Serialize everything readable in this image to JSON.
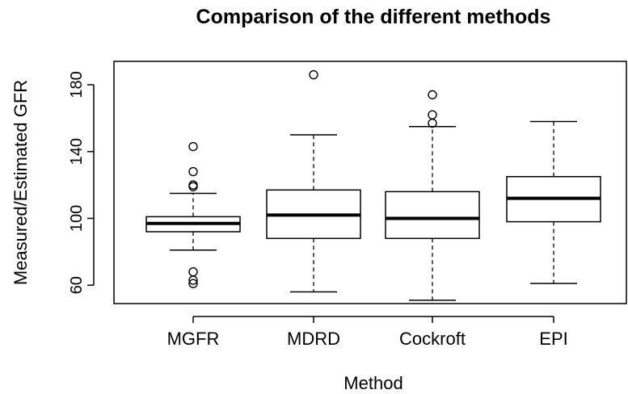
{
  "chart_data": {
    "type": "boxplot",
    "title": "Comparison of the different methods",
    "xlabel": "Method",
    "ylabel": "Measured/Estimated GFR",
    "categories": [
      "MGFR",
      "MDRD",
      "Cockroft",
      "EPI"
    ],
    "ylim": [
      49,
      194
    ],
    "yticks": [
      60,
      100,
      140,
      180
    ],
    "grid": false,
    "boxes": [
      {
        "name": "MGFR",
        "whisker_low": 81,
        "q1": 92,
        "median": 97,
        "q3": 101,
        "whisker_high": 115,
        "outliers": [
          61,
          63,
          68,
          119,
          120,
          128,
          143
        ]
      },
      {
        "name": "MDRD",
        "whisker_low": 56,
        "q1": 88,
        "median": 102,
        "q3": 117,
        "whisker_high": 150,
        "outliers": [
          186
        ]
      },
      {
        "name": "Cockroft",
        "whisker_low": 51,
        "q1": 88,
        "median": 100,
        "q3": 116,
        "whisker_high": 155,
        "outliers": [
          157,
          162,
          174
        ]
      },
      {
        "name": "EPI",
        "whisker_low": 61,
        "q1": 98,
        "median": 112,
        "q3": 125,
        "whisker_high": 158,
        "outliers": []
      }
    ]
  }
}
